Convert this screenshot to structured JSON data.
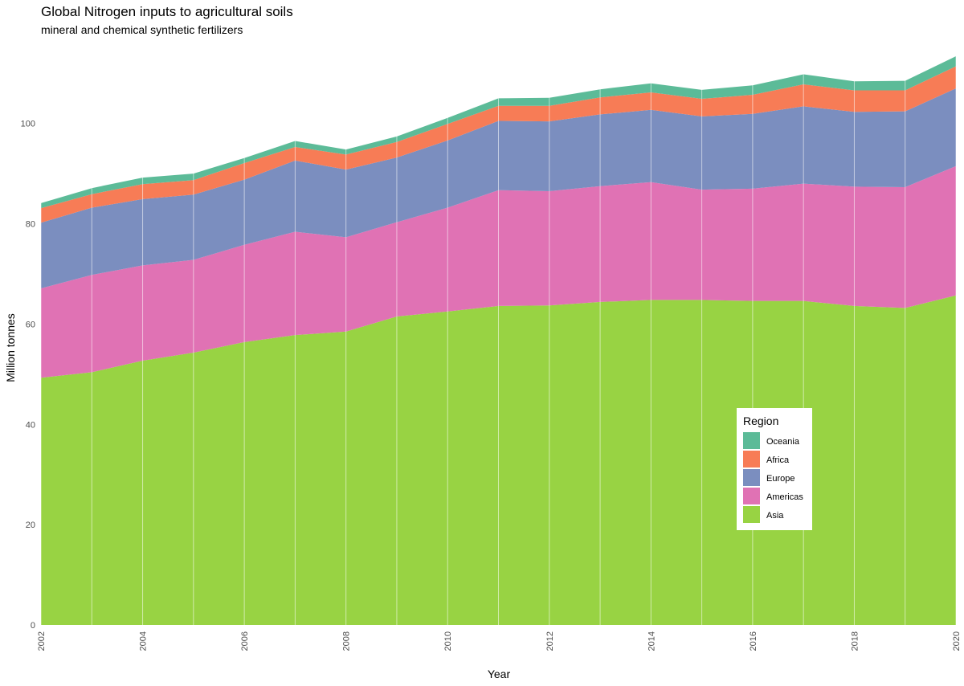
{
  "chart_data": {
    "type": "area",
    "stacked": true,
    "title": "Global Nitrogen inputs to agricultural soils",
    "subtitle": "mineral and chemical synthetic fertilizers",
    "xlabel": "Year",
    "ylabel": "Million tonnes",
    "x": [
      2002,
      2003,
      2004,
      2005,
      2006,
      2007,
      2008,
      2009,
      2010,
      2011,
      2012,
      2013,
      2014,
      2015,
      2016,
      2017,
      2018,
      2019,
      2020
    ],
    "xticks": [
      "2002",
      "2004",
      "2006",
      "2008",
      "2010",
      "2012",
      "2014",
      "2016",
      "2018",
      "2020"
    ],
    "yticks": [
      "0",
      "20",
      "40",
      "60",
      "80",
      "100"
    ],
    "xlim": [
      2002,
      2020
    ],
    "ylim": [
      0,
      115
    ],
    "grid": true,
    "legend": {
      "title": "Region",
      "placement": "inside-bottom-right",
      "order": [
        "Oceania",
        "Africa",
        "Europe",
        "Americas",
        "Asia"
      ]
    },
    "series": [
      {
        "name": "Asia",
        "color": "#98d343",
        "values": [
          49.3,
          50.4,
          52.7,
          54.3,
          56.4,
          57.8,
          58.5,
          61.5,
          62.5,
          63.6,
          63.7,
          64.4,
          64.8,
          64.8,
          64.6,
          64.6,
          63.6,
          63.2,
          65.7
        ]
      },
      {
        "name": "Americas",
        "color": "#e072b4",
        "values": [
          17.8,
          19.4,
          19.0,
          18.5,
          19.4,
          20.6,
          18.8,
          18.8,
          20.7,
          23.1,
          22.8,
          23.1,
          23.5,
          22.0,
          22.4,
          23.4,
          23.8,
          24.1,
          25.8
        ]
      },
      {
        "name": "Europe",
        "color": "#7b8ebf",
        "values": [
          13.1,
          13.4,
          13.2,
          13.0,
          13.0,
          14.2,
          13.5,
          12.9,
          13.4,
          13.8,
          13.9,
          14.3,
          14.4,
          14.6,
          14.9,
          15.4,
          14.9,
          15.1,
          15.5
        ]
      },
      {
        "name": "Africa",
        "color": "#f77c56",
        "values": [
          2.9,
          2.7,
          3.0,
          2.9,
          3.3,
          2.7,
          3.0,
          3.1,
          3.3,
          3.0,
          3.1,
          3.4,
          3.5,
          3.5,
          3.8,
          4.4,
          4.3,
          4.2,
          4.4
        ]
      },
      {
        "name": "Oceania",
        "color": "#5cbb98",
        "values": [
          1.0,
          1.2,
          1.3,
          1.3,
          1.0,
          1.2,
          1.0,
          1.1,
          1.2,
          1.5,
          1.6,
          1.6,
          1.8,
          1.8,
          1.9,
          2.0,
          1.8,
          1.9,
          2.0
        ]
      }
    ]
  }
}
